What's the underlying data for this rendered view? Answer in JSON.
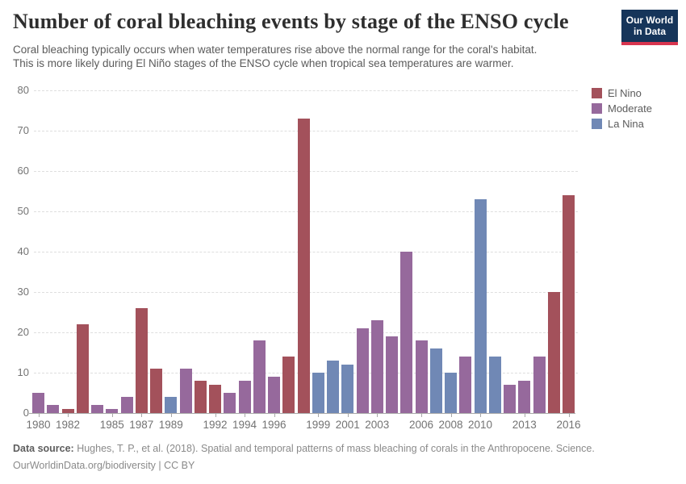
{
  "header": {
    "title": "Number of coral bleaching events by stage of the ENSO cycle",
    "subtitle_line1": "Coral bleaching typically occurs when water temperatures rise above the normal range for the coral's habitat.",
    "subtitle_line2": "This is more likely during El Niño stages of the ENSO cycle when tropical sea temperatures are warmer.",
    "logo": {
      "line1": "Our World",
      "line2": "in Data",
      "bg_color": "#16355a",
      "stripe_color": "#d8354f"
    }
  },
  "chart_data": {
    "type": "bar",
    "title": "Number of coral bleaching events by stage of the ENSO cycle",
    "xlabel": "",
    "ylabel": "",
    "ylim": [
      0,
      80
    ],
    "yticks": [
      0,
      10,
      20,
      30,
      40,
      50,
      60,
      70,
      80
    ],
    "grid": "horizontal-dashed",
    "legend_position": "right",
    "x": [
      1980,
      1981,
      1982,
      1983,
      1984,
      1985,
      1986,
      1987,
      1988,
      1989,
      1990,
      1991,
      1992,
      1993,
      1994,
      1995,
      1996,
      1997,
      1998,
      1999,
      2000,
      2001,
      2002,
      2003,
      2004,
      2005,
      2006,
      2007,
      2008,
      2009,
      2010,
      2011,
      2012,
      2013,
      2014,
      2015,
      2016
    ],
    "values": [
      5,
      2,
      1,
      22,
      2,
      1,
      4,
      26,
      11,
      4,
      11,
      8,
      7,
      5,
      8,
      18,
      9,
      14,
      73,
      10,
      13,
      12,
      21,
      23,
      19,
      40,
      18,
      16,
      10,
      14,
      53,
      14,
      7,
      8,
      14,
      30,
      54
    ],
    "phase": [
      "Moderate",
      "Moderate",
      "El Nino",
      "El Nino",
      "Moderate",
      "Moderate",
      "Moderate",
      "El Nino",
      "El Nino",
      "La Nina",
      "Moderate",
      "El Nino",
      "El Nino",
      "Moderate",
      "Moderate",
      "Moderate",
      "Moderate",
      "El Nino",
      "El Nino",
      "La Nina",
      "La Nina",
      "La Nina",
      "Moderate",
      "Moderate",
      "Moderate",
      "Moderate",
      "Moderate",
      "La Nina",
      "La Nina",
      "Moderate",
      "La Nina",
      "La Nina",
      "Moderate",
      "Moderate",
      "Moderate",
      "El Nino",
      "El Nino"
    ],
    "xticks_labeled": [
      1980,
      1982,
      1985,
      1987,
      1989,
      1992,
      1994,
      1996,
      1999,
      2001,
      2003,
      2006,
      2008,
      2010,
      2013,
      2016
    ],
    "legend": [
      "El Nino",
      "Moderate",
      "La Nina"
    ],
    "series_colors": {
      "El Nino": "#a3515b",
      "Moderate": "#96699c",
      "La Nina": "#7088b5"
    }
  },
  "footer": {
    "datasource_label": "Data source:",
    "datasource_text": " Hughes, T. P., et al. (2018). Spatial and temporal patterns of mass bleaching of corals in the Anthropocene. Science.",
    "line2": "OurWorldinData.org/biodiversity | CC BY"
  }
}
